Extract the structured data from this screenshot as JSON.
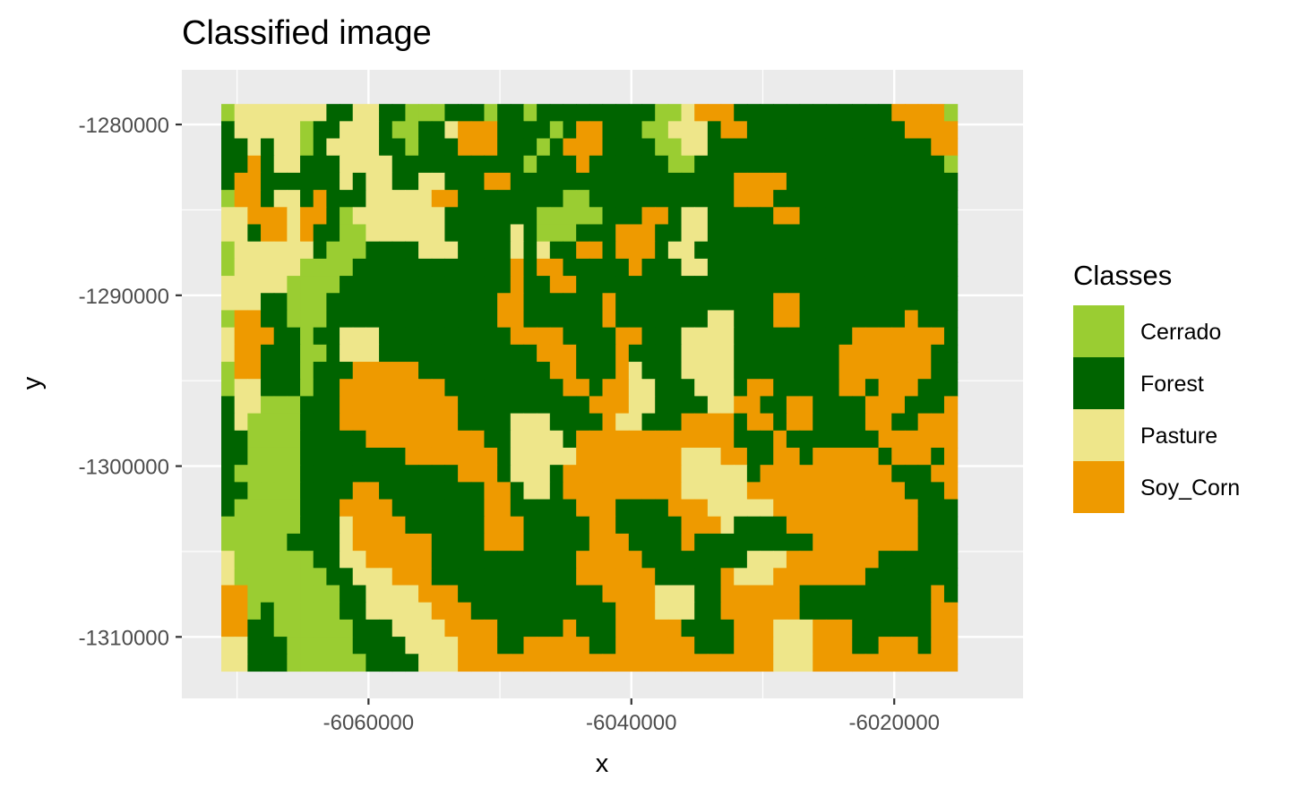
{
  "colors": {
    "Cerrado": "#9ACD32",
    "Forest": "#006400",
    "Pasture": "#EEE68A",
    "Soy_Corn": "#EE9A00",
    "panel_bg": "#EBEBEB",
    "grid": "#FFFFFF",
    "tick_text": "#4D4D4D"
  },
  "chart_data": {
    "type": "heatmap",
    "title": "Classified image",
    "xlabel": "x",
    "ylabel": "y",
    "xlim": [
      -6074200,
      -6010200
    ],
    "ylim": [
      -1313600,
      -1276800
    ],
    "raster_extent": {
      "x": [
        -6071200,
        -6015200
      ],
      "y": [
        -1312000,
        -1278800
      ]
    },
    "x_ticks": [
      -6060000,
      -6040000,
      -6020000
    ],
    "x_tick_labels": [
      "-6060000",
      "-6040000",
      "-6020000"
    ],
    "y_ticks": [
      -1280000,
      -1290000,
      -1300000,
      -1310000
    ],
    "y_tick_labels": [
      "-1280000",
      "-1290000",
      "-1300000",
      "-1310000"
    ],
    "grid": true,
    "legend": {
      "title": "Classes",
      "position": "right",
      "entries": [
        "Cerrado",
        "Forest",
        "Pasture",
        "Soy_Corn"
      ]
    },
    "raster_grid": {
      "cols": 56,
      "rows": 33
    },
    "raster_rows": [
      "CPPPPPPPFFPPFFCCCFFFCFFCFFFFFFFFFCCPSSSFFFFFFFFFFFFSSSSC",
      "FPPPPPCFFPPPFCCFFPSSSFFFFCFSSFFFCCPPPFSSFFFFFFFFFFFFSSSS",
      "FFPFPPCFPPPPFFCFFFSSSFFFCFSSSFFFFCCPPFFFFFFFFFFFFFFFFFSS",
      "FFSFPPFFFPPPPFFFFFFFFFFCFFFSFFFFFFCCFFFFFFFFFFFFFFFFFFFC",
      "FSSFFFFFFPFPPFFPPFFFSSFFFFFFFFFFFFFFFFFSSSSFFFFFFFFFFFFF",
      "CSSFPPFSFFFPPPPPSSFFFFFFFFCCFFFFFFFFFFFSSSFFFFFFFFFFFFFF",
      "PPSSSPSSFCPPPPPPPFFFFFFFCCCCCFFFSSFPPFFFFFSSFFFFFFFFFFFF",
      "PPFSSPSFFCCPPPPPPFFFFFPFCCCFFFSSSFFPPFFFFFFFFFFFFFFFFFFF",
      "CPPPPPPFCCCFFFFPPPFFFFPFPFFSSFSSSFPPFFFFFFFFFFFFFFFFFFFF",
      "CPPPPPCCCCFFFFFFFFFFFFSFSSFFFFFSFFFPPFFFFFFFFFFFFFFFFFFF",
      "PPPPPCCCCFFFFFFFFFFFFFSFFSSFFFFFFFFFFFFFFFFFFFFFFFFFFFFF",
      "PPPFFCCCFFFFFFFFFFFFFSSFFFFFFSFFFFFFFFFFFFSSFFFFFFFFFFFF",
      "CSSFFCCCFFFFFFFFFFFFFSSFFFFFFSFFFFFFFPPFFFSSFFFFFFFFSFFF",
      "PSSSFFCFFPPPFFFFFFFFFFSSSSFFFFSSFFFPPPPFFFFFFFFFSSSSSSSF",
      "PSSFFFCCFPPPFFFFFFFFFFFFSSSFFFSFFFFPPPPFFFFFFFFSSSSSSSFF",
      "CSSFFFCFFFSSSSSFFFFFFFFFFSSFFFSPFFFPPPPFFFFFFFFSSSSSSSFF",
      "CPPFFFCFFSSSSSSSSFFFFFFFFFSSFSSPPFFFPPPFSSFFFFFSSFSSSFFF",
      "FPPCCCFFFSSSSSSSSSFFFFFFFFFFSSSPPFFFFPPSSFFSSFFFFSSSFFFS",
      "FPCCCCFFFSSSSSSSSSFFFFPPPFFFFSPPFFFSSSSFSSFSSFFFFSSFFSSS",
      "FFCCCCFFFFFSSSSSSSSSFFPPPPFSSSSSSSSSSSSFFFSFFFFFFFSSSSSS",
      "FFCCCCFFFFFFFFSSSSSSSFPPPPPSSSSSSSSPPPSSFFSSFSSSSSFSSSFS",
      "FCCCCCFFFFFFFFFFFFSSSFPPPFSSSSSSSSSPPPPPFSSSSSSSSSSFFFSS",
      "FFCCCCFFFFSSFFFFFFFFSSFPPFSSSSSSSSSPPPPPSSSSSSSSSSSSFFFS",
      "FCCCCCFFFSSSSFFFFFFFSSFFFFFSSSFFFFSSSPPPPPSSSSSSSSSSSFFF",
      "CCCCCCFFFPSSSSFFFFFFSSSFFFFFSSFFFFFSSSPFFFFSSSSSSSSSSFFF",
      "CCCCCFFFFPSSSSSSFFFFSSSFFFFFSSSFFFFSFFFFFFFFFSSSSSSSSFFF",
      "PCCCCCCFFPPSSSSSFFFFFFFFFFFSSSSSFFFFFFFFPPPSSSSSSSFFFFFF",
      "PCCCCCCCFFPPPSSSFFFFFFFFFFFSSSSSSFFFFFSPPPSSSSSSSFFFFFFF",
      "SSCCCCCCCFFPPPPSSSFFFFFFFFFFFSSSSPPPFFSSSSSSFFFFFFFFFFSF",
      "SSCFCCCCCFFPPPPPSSSFFFFFFFFFFFSSSPPPFFSSSSSSFFFFFFFFFFSS",
      "SSFFCCCCCCFFFPPPPSSSSFFFFFSFFFSSSSSFFFFSSSPPPSSSFFFFFFSS",
      "PPFFFCCCCCFFFFPPPPSSSFFSSSSSFFSSSSSSFFFSSSPPPSSSFFSSSFSS",
      "PPFFFCCCCCCFFFFPPPSSSSSSSSSSSSSSSSSSSSSSSSPPPSSSSSSSSSSS"
    ]
  }
}
